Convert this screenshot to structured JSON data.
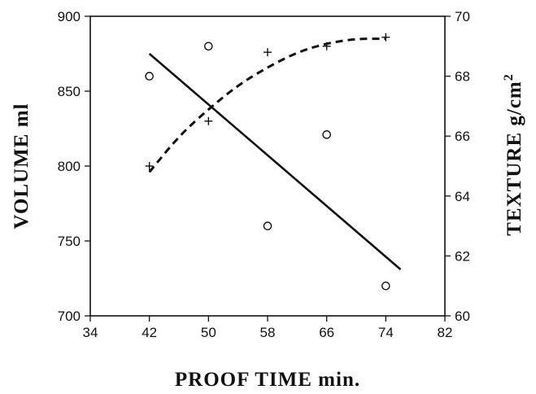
{
  "chart_data": {
    "type": "scatter",
    "xlabel": "PROOF TIME  min.",
    "ylabel_left": "VOLUME  ml",
    "ylabel_right": "TEXTURE  g/cm",
    "ylabel_right_superscript": "2",
    "xlim": [
      34,
      82
    ],
    "ylim_left": [
      700,
      900
    ],
    "ylim_right": [
      60,
      70
    ],
    "x_ticks": [
      34,
      42,
      50,
      58,
      66,
      74,
      82
    ],
    "y_left_ticks": [
      700,
      750,
      800,
      850,
      900
    ],
    "y_right_ticks": [
      60,
      62,
      64,
      66,
      68,
      70
    ],
    "grid": false,
    "series": [
      {
        "marker": "circle",
        "axis": "left",
        "x": [
          42,
          50,
          58,
          66,
          74
        ],
        "y": [
          860,
          880,
          760,
          821,
          720
        ]
      },
      {
        "marker": "plus",
        "axis": "right",
        "x": [
          42,
          50,
          58,
          66,
          74
        ],
        "y": [
          65.0,
          66.5,
          68.8,
          69.0,
          69.3
        ]
      },
      {
        "line_style": "solid",
        "axis": "left",
        "x": [
          42,
          76
        ],
        "y": [
          875,
          731
        ]
      },
      {
        "line_style": "dashed",
        "axis": "right",
        "x": [
          42,
          46,
          50,
          54,
          58,
          62,
          66,
          70,
          74
        ],
        "y": [
          64.8,
          66.0,
          66.9,
          67.7,
          68.3,
          68.8,
          69.1,
          69.25,
          69.25
        ]
      }
    ]
  }
}
